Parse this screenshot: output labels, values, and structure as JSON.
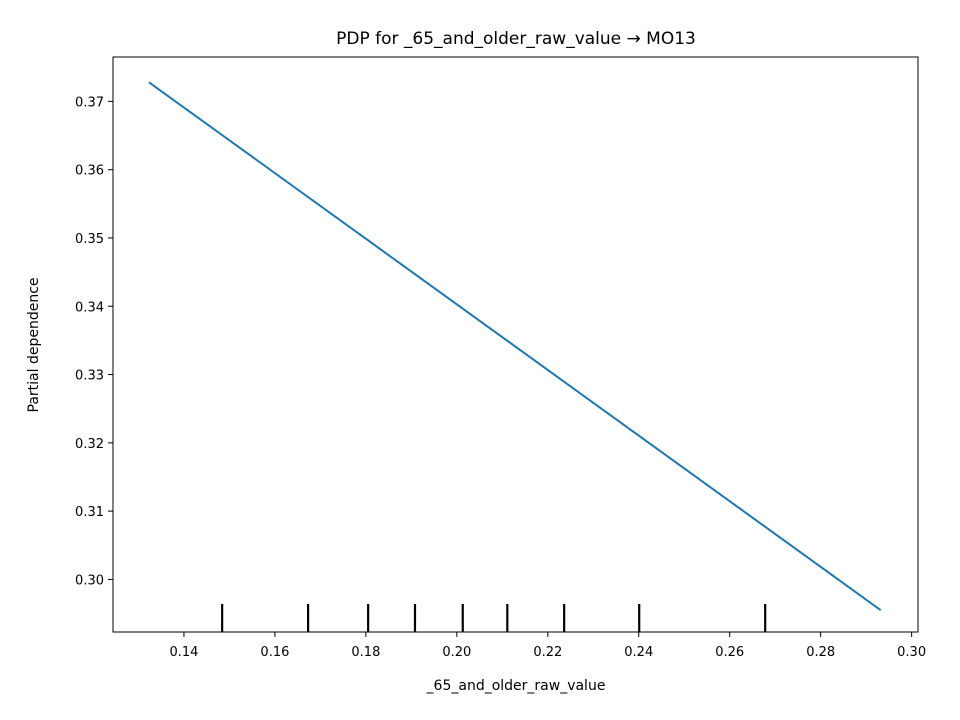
{
  "chart_data": {
    "type": "line",
    "title": "PDP for _65_and_older_raw_value → MO13",
    "xlabel": "_65_and_older_raw_value",
    "ylabel": "Partial dependence",
    "xlim": [
      0.1244,
      0.3014
    ],
    "ylim": [
      0.2923,
      0.3765
    ],
    "x_ticks": [
      "0.14",
      "0.16",
      "0.18",
      "0.20",
      "0.22",
      "0.24",
      "0.26",
      "0.28",
      "0.30"
    ],
    "y_ticks": [
      "0.30",
      "0.31",
      "0.32",
      "0.33",
      "0.34",
      "0.35",
      "0.36",
      "0.37"
    ],
    "series": [
      {
        "x": [
          0.1323,
          0.2932
        ],
        "y": [
          0.3728,
          0.2955
        ],
        "color": "#1f77b4"
      }
    ],
    "deciles": [
      0.1484,
      0.1673,
      0.1805,
      0.1908,
      0.2013,
      0.2111,
      0.2236,
      0.2401,
      0.2678
    ],
    "grid": false
  }
}
